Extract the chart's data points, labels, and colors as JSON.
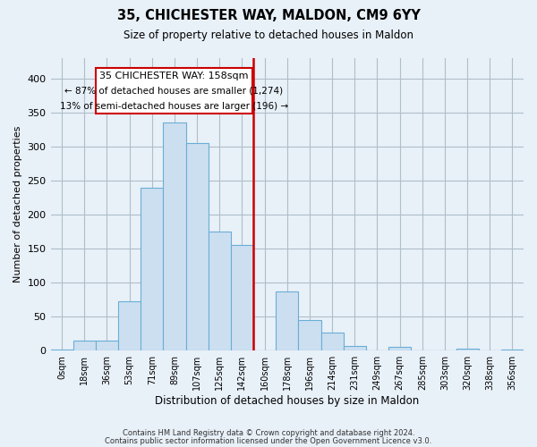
{
  "title": "35, CHICHESTER WAY, MALDON, CM9 6YY",
  "subtitle": "Size of property relative to detached houses in Maldon",
  "xlabel": "Distribution of detached houses by size in Maldon",
  "ylabel": "Number of detached properties",
  "bar_labels": [
    "0sqm",
    "18sqm",
    "36sqm",
    "53sqm",
    "71sqm",
    "89sqm",
    "107sqm",
    "125sqm",
    "142sqm",
    "160sqm",
    "178sqm",
    "196sqm",
    "214sqm",
    "231sqm",
    "249sqm",
    "267sqm",
    "285sqm",
    "303sqm",
    "320sqm",
    "338sqm",
    "356sqm"
  ],
  "bar_values": [
    2,
    15,
    15,
    72,
    240,
    335,
    305,
    175,
    155,
    0,
    87,
    45,
    27,
    7,
    0,
    5,
    0,
    0,
    3,
    0,
    2
  ],
  "bar_color": "#ccdff0",
  "bar_edge_color": "#6aaed6",
  "reference_line_label": "35 CHICHESTER WAY: 158sqm",
  "annotation_line1": "← 87% of detached houses are smaller (1,274)",
  "annotation_line2": "13% of semi-detached houses are larger (196) →",
  "box_color": "#ffffff",
  "box_edge_color": "#cc0000",
  "vline_color": "#cc0000",
  "ylim": [
    0,
    430
  ],
  "yticks": [
    0,
    50,
    100,
    150,
    200,
    250,
    300,
    350,
    400
  ],
  "footnote1": "Contains HM Land Registry data © Crown copyright and database right 2024.",
  "footnote2": "Contains public sector information licensed under the Open Government Licence v3.0.",
  "background_color": "#e8f0f8"
}
